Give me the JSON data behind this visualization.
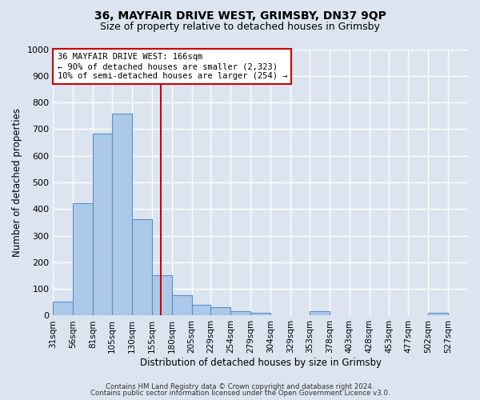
{
  "title": "36, MAYFAIR DRIVE WEST, GRIMSBY, DN37 9QP",
  "subtitle": "Size of property relative to detached houses in Grimsby",
  "xlabel": "Distribution of detached houses by size in Grimsby",
  "ylabel": "Number of detached properties",
  "bin_labels": [
    "31sqm",
    "56sqm",
    "81sqm",
    "105sqm",
    "130sqm",
    "155sqm",
    "180sqm",
    "205sqm",
    "229sqm",
    "254sqm",
    "279sqm",
    "304sqm",
    "329sqm",
    "353sqm",
    "378sqm",
    "403sqm",
    "428sqm",
    "453sqm",
    "477sqm",
    "502sqm",
    "527sqm"
  ],
  "bin_edges": [
    31,
    56,
    81,
    105,
    130,
    155,
    180,
    205,
    229,
    254,
    279,
    304,
    329,
    353,
    378,
    403,
    428,
    453,
    477,
    502,
    527,
    552
  ],
  "bar_heights": [
    52,
    422,
    684,
    757,
    363,
    152,
    75,
    40,
    30,
    15,
    10,
    0,
    0,
    15,
    0,
    0,
    0,
    0,
    0,
    10,
    0
  ],
  "bar_color": "#adc9e9",
  "bar_edge_color": "#5b8fc9",
  "vline_x": 166,
  "vline_color": "#cc0000",
  "annotation_line1": "36 MAYFAIR DRIVE WEST: 166sqm",
  "annotation_line2": "← 90% of detached houses are smaller (2,323)",
  "annotation_line3": "10% of semi-detached houses are larger (254) →",
  "annotation_box_edgecolor": "#cc0000",
  "annotation_box_facecolor": "white",
  "ylim": [
    0,
    1000
  ],
  "yticks": [
    0,
    100,
    200,
    300,
    400,
    500,
    600,
    700,
    800,
    900,
    1000
  ],
  "footer_line1": "Contains HM Land Registry data © Crown copyright and database right 2024.",
  "footer_line2": "Contains public sector information licensed under the Open Government Licence v3.0.",
  "bg_color": "#dce4f0",
  "plot_bg_color": "#dce4f0",
  "grid_color": "white"
}
